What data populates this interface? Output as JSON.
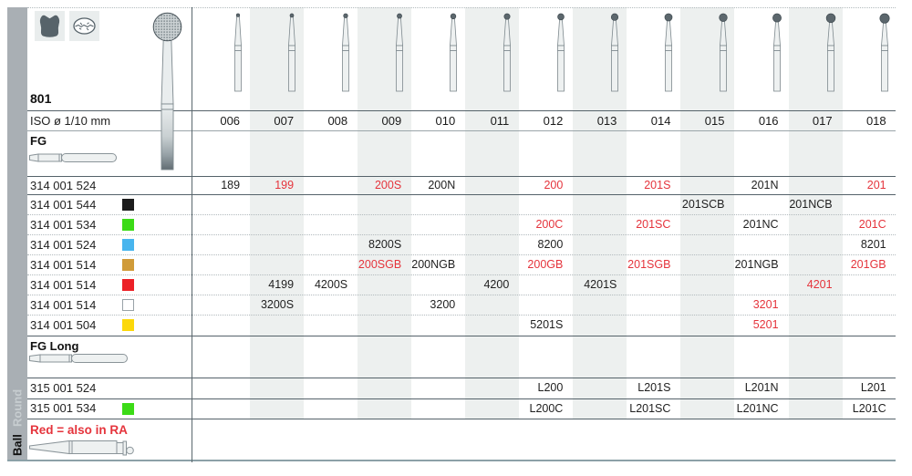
{
  "colors": {
    "red_text": "#e5343c",
    "band": "#edf0ef",
    "strip": "#a9afb4",
    "squares": {
      "black": "#1c1c1c",
      "green": "#3cdb17",
      "blue": "#48b5ee",
      "gold": "#d09b39",
      "red": "#ec2127",
      "white": "#ffffff",
      "yellow": "#fcd80a"
    }
  },
  "side": {
    "round": "Round",
    "ball": "Ball"
  },
  "header": {
    "figure": "801",
    "iso": "ISO ø 1/10 mm",
    "sizes": [
      "006",
      "007",
      "008",
      "009",
      "010",
      "011",
      "012",
      "013",
      "014",
      "015",
      "016",
      "017",
      "018"
    ]
  },
  "sections": {
    "fg": "FG",
    "fg_long": "FG Long",
    "note": "Red = also in RA"
  },
  "table": {
    "fg_rows": [
      {
        "code": "314 001 524",
        "square": null,
        "cells": [
          {
            "size": "006",
            "value": "189",
            "red": false
          },
          {
            "size": "007",
            "value": "199",
            "red": true
          },
          {
            "size": "009",
            "value": "200S",
            "red": true
          },
          {
            "size": "010",
            "value": "200N",
            "red": false
          },
          {
            "size": "012",
            "value": "200",
            "red": true
          },
          {
            "size": "014",
            "value": "201S",
            "red": true
          },
          {
            "size": "016",
            "value": "201N",
            "red": false
          },
          {
            "size": "018",
            "value": "201",
            "red": true
          }
        ]
      },
      {
        "code": "314 001 544",
        "square": "black",
        "cells": [
          {
            "size": "015",
            "value": "201SCB",
            "red": false
          },
          {
            "size": "017",
            "value": "201NCB",
            "red": false
          }
        ]
      },
      {
        "code": "314 001 534",
        "square": "green",
        "cells": [
          {
            "size": "012",
            "value": "200C",
            "red": true
          },
          {
            "size": "014",
            "value": "201SC",
            "red": true
          },
          {
            "size": "016",
            "value": "201NC",
            "red": false
          },
          {
            "size": "018",
            "value": "201C",
            "red": true
          }
        ]
      },
      {
        "code": "314 001 524",
        "square": "blue",
        "cells": [
          {
            "size": "009",
            "value": "8200S",
            "red": false
          },
          {
            "size": "012",
            "value": "8200",
            "red": false
          },
          {
            "size": "018",
            "value": "8201",
            "red": false
          }
        ]
      },
      {
        "code": "314 001 514",
        "square": "gold",
        "cells": [
          {
            "size": "009",
            "value": "200SGB",
            "red": true
          },
          {
            "size": "010",
            "value": "200NGB",
            "red": false
          },
          {
            "size": "012",
            "value": "200GB",
            "red": true
          },
          {
            "size": "014",
            "value": "201SGB",
            "red": true
          },
          {
            "size": "016",
            "value": "201NGB",
            "red": false
          },
          {
            "size": "018",
            "value": "201GB",
            "red": true
          }
        ]
      },
      {
        "code": "314 001 514",
        "square": "red",
        "cells": [
          {
            "size": "007",
            "value": "4199",
            "red": false
          },
          {
            "size": "008",
            "value": "4200S",
            "red": false
          },
          {
            "size": "011",
            "value": "4200",
            "red": false
          },
          {
            "size": "013",
            "value": "4201S",
            "red": false
          },
          {
            "size": "017",
            "value": "4201",
            "red": true
          }
        ]
      },
      {
        "code": "314 001 514",
        "square": "white",
        "cells": [
          {
            "size": "007",
            "value": "3200S",
            "red": false
          },
          {
            "size": "010",
            "value": "3200",
            "red": false
          },
          {
            "size": "016",
            "value": "3201",
            "red": true
          }
        ]
      },
      {
        "code": "314 001 504",
        "square": "yellow",
        "cells": [
          {
            "size": "012",
            "value": "5201S",
            "red": false
          },
          {
            "size": "016",
            "value": "5201",
            "red": true
          }
        ]
      }
    ],
    "fg_long_rows": [
      {
        "code": "315 001 524",
        "square": null,
        "cells": [
          {
            "size": "012",
            "value": "L200",
            "red": false
          },
          {
            "size": "014",
            "value": "L201S",
            "red": false
          },
          {
            "size": "016",
            "value": "L201N",
            "red": false
          },
          {
            "size": "018",
            "value": "L201",
            "red": false
          }
        ]
      },
      {
        "code": "315 001 534",
        "square": "green",
        "cells": [
          {
            "size": "012",
            "value": "L200C",
            "red": false
          },
          {
            "size": "014",
            "value": "L201SC",
            "red": false
          },
          {
            "size": "016",
            "value": "L201NC",
            "red": false
          },
          {
            "size": "018",
            "value": "L201C",
            "red": false
          }
        ]
      }
    ]
  }
}
